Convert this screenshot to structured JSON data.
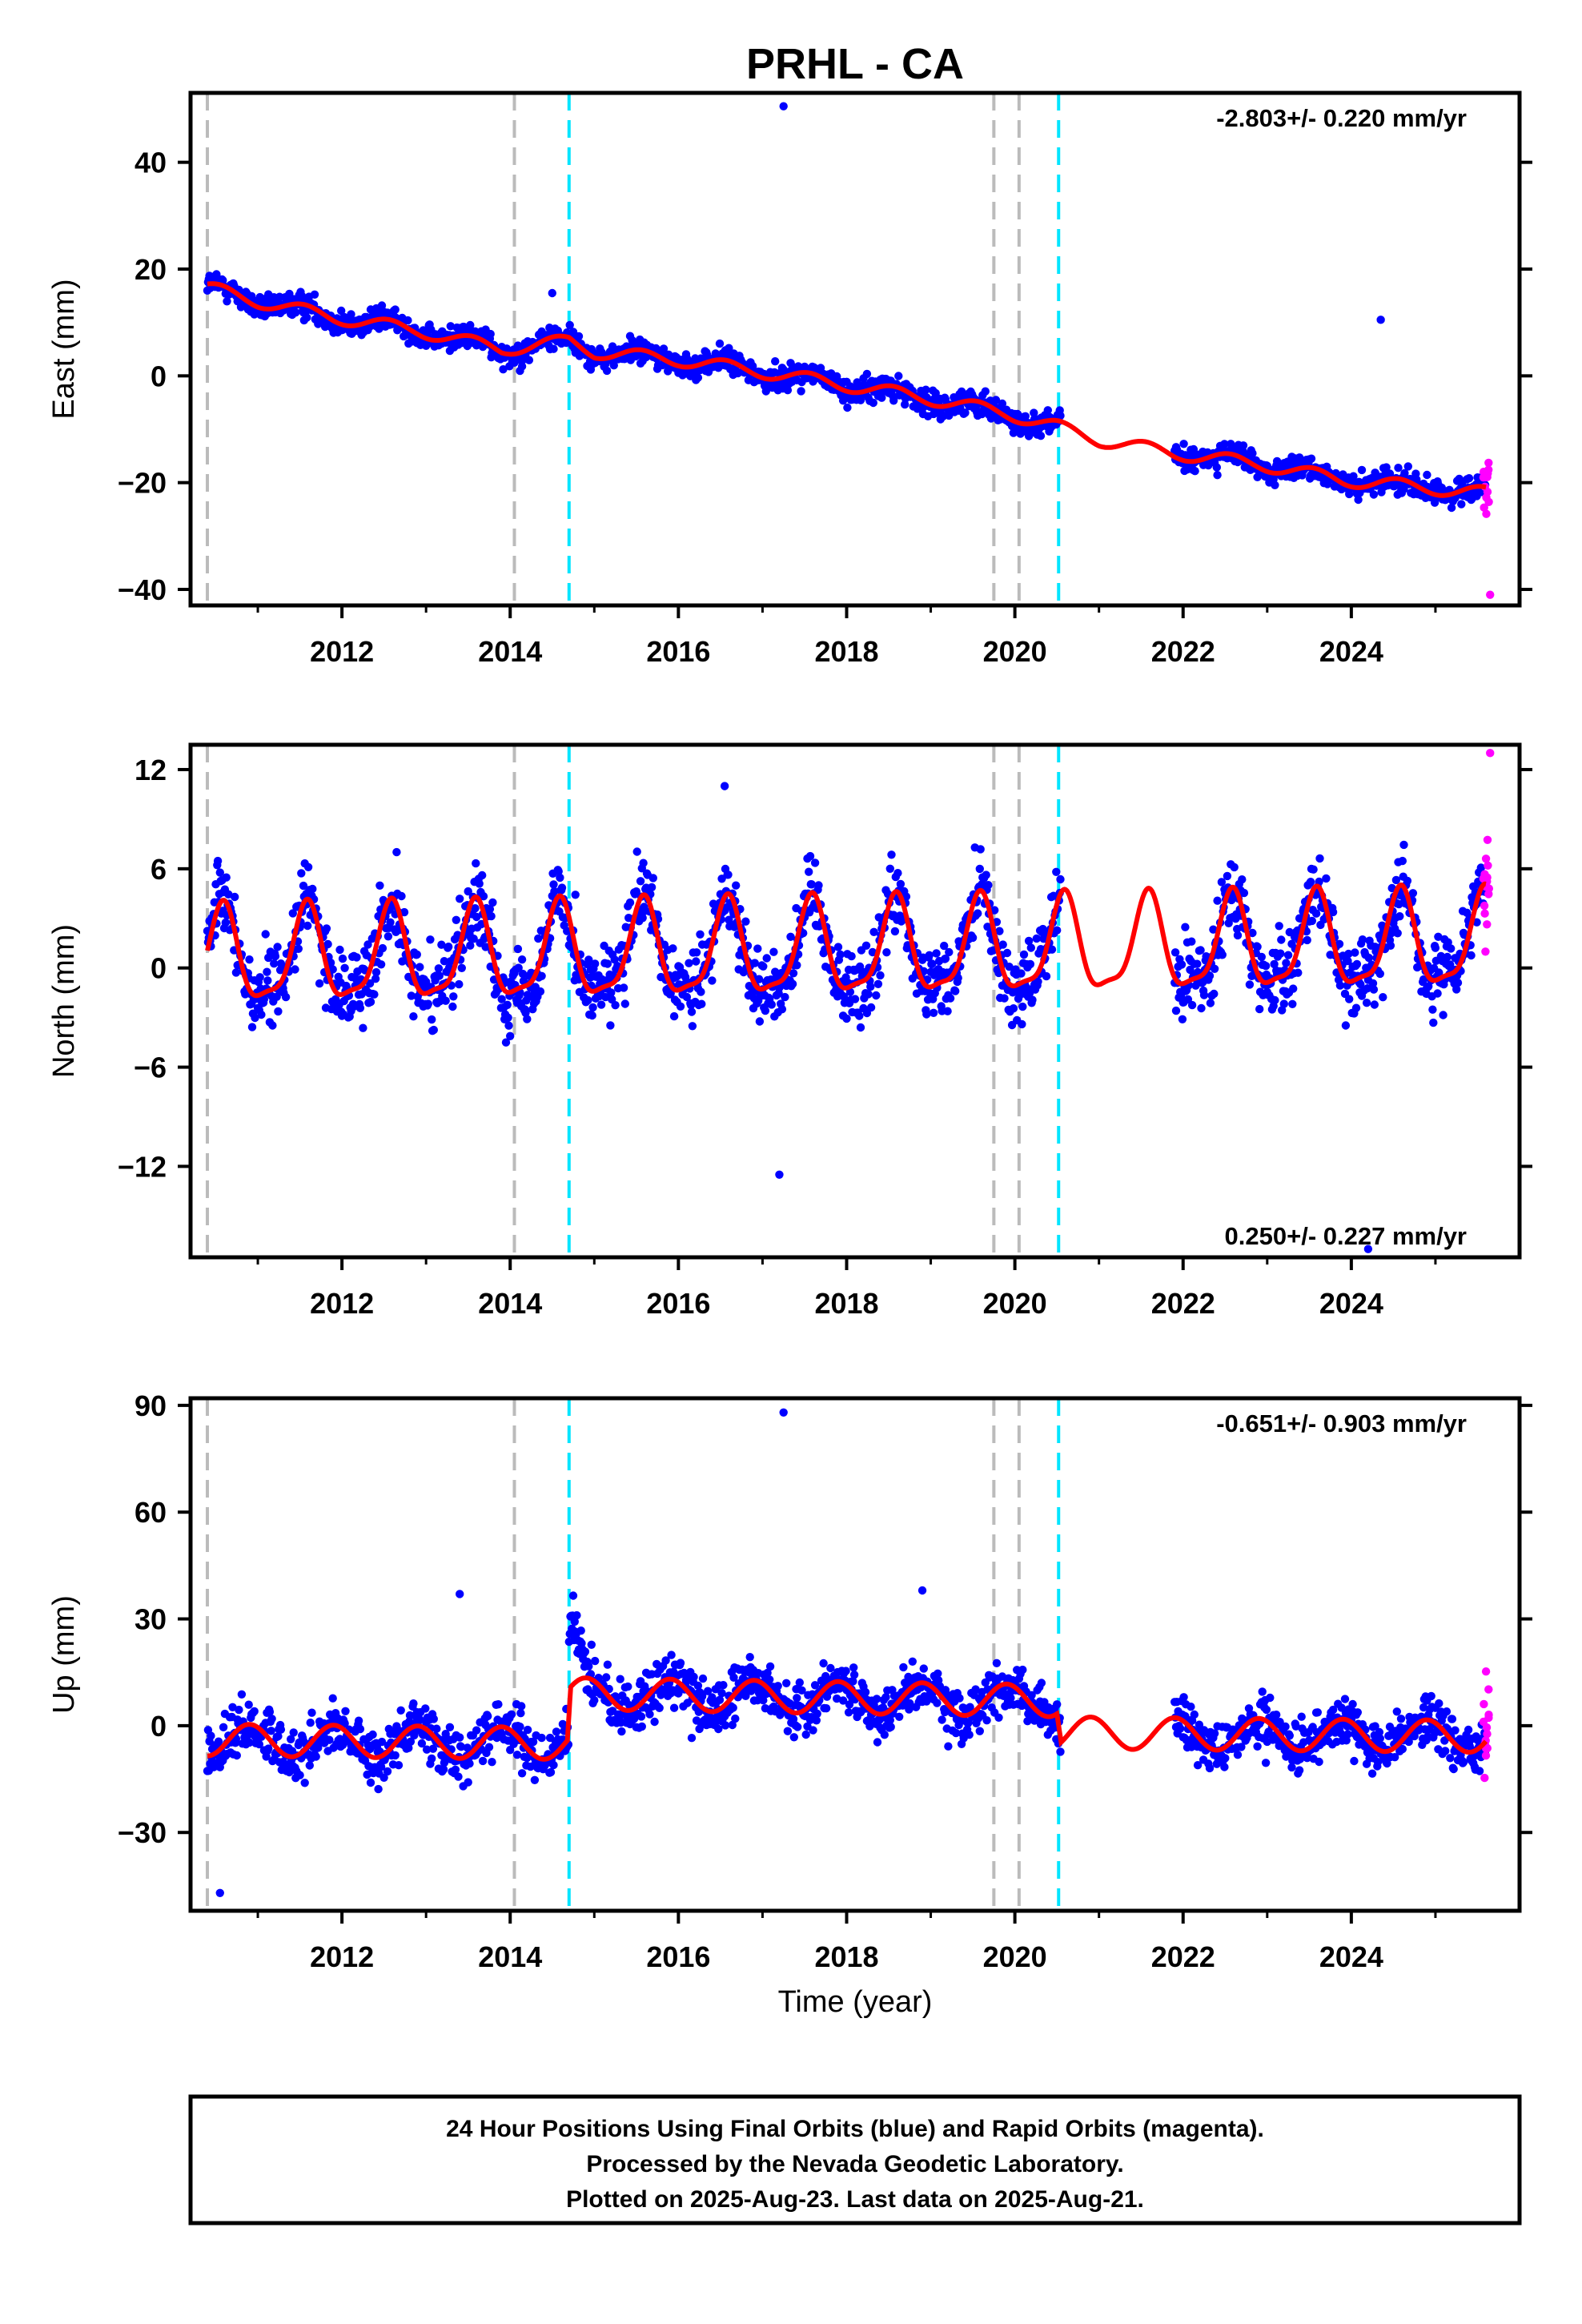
{
  "chart_data": {
    "type": "scatter",
    "title": "PRHL - CA",
    "xlabel": "Time (year)",
    "xlim": [
      2010.2,
      2026.0
    ],
    "xticks": [
      2012,
      2014,
      2016,
      2018,
      2020,
      2022,
      2024
    ],
    "event_lines": [
      {
        "year": 2010.4,
        "color": "#bbbbbb"
      },
      {
        "year": 2014.05,
        "color": "#bbbbbb"
      },
      {
        "year": 2014.7,
        "color": "#00e5ff"
      },
      {
        "year": 2019.75,
        "color": "#bbbbbb"
      },
      {
        "year": 2020.05,
        "color": "#bbbbbb"
      },
      {
        "year": 2020.52,
        "color": "#00e5ff"
      }
    ],
    "colors": {
      "final": "#0000ff",
      "rapid": "#ff00ff",
      "model": "#ff0000"
    },
    "panels": [
      {
        "name": "east",
        "ylabel": "East (mm)",
        "ylim": [
          -43,
          53
        ],
        "yticks": [
          -40,
          -20,
          0,
          20,
          40
        ],
        "rate": "-2.803+/- 0.220 mm/yr",
        "rate_position": "top-right",
        "model_knots": [
          [
            2010.4,
            16.5
          ],
          [
            2011.0,
            14
          ],
          [
            2011.9,
            11
          ],
          [
            2012.9,
            8.5
          ],
          [
            2013.9,
            5
          ],
          [
            2014.7,
            6.5
          ],
          [
            2015.0,
            4.5
          ],
          [
            2016.0,
            3
          ],
          [
            2016.9,
            1
          ],
          [
            2017.9,
            -1.5
          ],
          [
            2018.9,
            -4
          ],
          [
            2019.9,
            -7
          ],
          [
            2020.5,
            -9.5
          ],
          [
            2021.0,
            -12
          ],
          [
            2021.9,
            -14.5
          ],
          [
            2022.9,
            -16.5
          ],
          [
            2023.9,
            -19.5
          ],
          [
            2025.6,
            -22
          ]
        ],
        "outliers": [
          [
            2017.25,
            50.5
          ],
          [
            2024.35,
            10.5
          ],
          [
            2014.5,
            15.5
          ],
          [
            2025.65,
            -41
          ]
        ]
      },
      {
        "name": "north",
        "ylabel": "North (mm)",
        "ylim": [
          -17.5,
          13.5
        ],
        "yticks": [
          -12,
          -6,
          0,
          6,
          12
        ],
        "rate": "0.250+/- 0.227 mm/yr",
        "rate_position": "bottom-right",
        "model_knots": [
          [
            2010.4,
            0.5
          ],
          [
            2025.6,
            1.5
          ]
        ],
        "seasonal_amplitude": 2.8,
        "outliers": [
          [
            2017.2,
            -12.5
          ],
          [
            2016.55,
            11
          ],
          [
            2025.65,
            13
          ],
          [
            2024.2,
            -17
          ]
        ]
      },
      {
        "name": "up",
        "ylabel": "Up (mm)",
        "ylim": [
          -52,
          92
        ],
        "yticks": [
          -30,
          0,
          30,
          60,
          90
        ],
        "rate": "-0.651+/- 0.903 mm/yr",
        "rate_position": "top-right",
        "model_knots": [
          [
            2010.4,
            -4
          ],
          [
            2014.68,
            -5
          ],
          [
            2014.72,
            9
          ],
          [
            2020.5,
            7
          ],
          [
            2020.55,
            -2
          ],
          [
            2025.6,
            -3
          ]
        ],
        "seasonal_amplitude": 4.5,
        "outliers": [
          [
            2017.25,
            88
          ],
          [
            2010.55,
            -47
          ],
          [
            2013.4,
            37
          ],
          [
            2018.9,
            38
          ]
        ]
      }
    ],
    "data_gaps": [
      [
        2020.55,
        2021.9
      ]
    ],
    "rapid_orbit_start": 2025.55
  },
  "footer": {
    "line1": "24 Hour Positions Using Final Orbits (blue) and Rapid Orbits (magenta).",
    "line2": "Processed by the Nevada Geodetic Laboratory.",
    "line3": "Plotted on 2025-Aug-23. Last data on 2025-Aug-21."
  }
}
